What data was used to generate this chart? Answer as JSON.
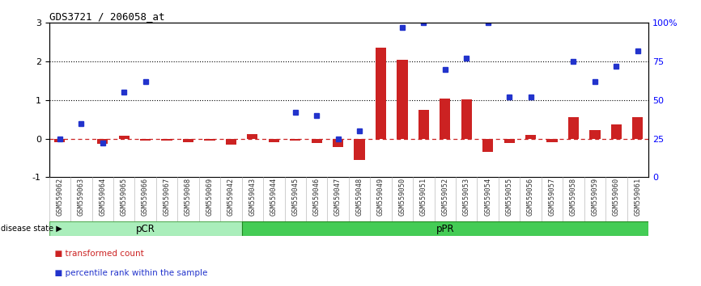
{
  "title": "GDS3721 / 206058_at",
  "samples": [
    "GSM559062",
    "GSM559063",
    "GSM559064",
    "GSM559065",
    "GSM559066",
    "GSM559067",
    "GSM559068",
    "GSM559069",
    "GSM559042",
    "GSM559043",
    "GSM559044",
    "GSM559045",
    "GSM559046",
    "GSM559047",
    "GSM559048",
    "GSM559049",
    "GSM559050",
    "GSM559051",
    "GSM559052",
    "GSM559053",
    "GSM559054",
    "GSM559055",
    "GSM559056",
    "GSM559057",
    "GSM559058",
    "GSM559059",
    "GSM559060",
    "GSM559061"
  ],
  "transformed_count": [
    -0.08,
    0.0,
    -0.13,
    0.08,
    -0.05,
    -0.05,
    -0.08,
    -0.05,
    -0.15,
    0.12,
    -0.08,
    -0.05,
    -0.12,
    -0.22,
    -0.55,
    2.35,
    2.05,
    0.75,
    1.05,
    1.02,
    -0.35,
    -0.12,
    0.1,
    -0.08,
    0.55,
    0.22,
    0.38,
    0.55
  ],
  "percentile_rank": [
    25,
    35,
    22,
    55,
    62,
    null,
    null,
    null,
    null,
    null,
    null,
    42,
    40,
    25,
    30,
    null,
    97,
    100,
    70,
    77,
    100,
    52,
    52,
    null,
    75,
    62,
    72,
    82
  ],
  "pCR_count": 9,
  "pPR_count": 19,
  "ylim": [
    -1,
    3
  ],
  "yticks": [
    -1,
    0,
    1,
    2,
    3
  ],
  "yticklabels": [
    "-1",
    "0",
    "1",
    "2",
    "3"
  ],
  "right_ylim": [
    0,
    100
  ],
  "right_yticks": [
    0,
    25,
    50,
    75,
    100
  ],
  "right_yticklabels": [
    "0",
    "25",
    "50",
    "75",
    "100%"
  ],
  "bar_color": "#cc2222",
  "dot_color": "#2233cc",
  "zero_line_color": "#cc2222",
  "hline_color": "black",
  "pCR_color": "#aaeebb",
  "pPR_color": "#44cc55",
  "legend_red_label": "transformed count",
  "legend_blue_label": "percentile rank within the sample",
  "disease_state_label": "disease state",
  "pCR_label": "pCR",
  "pPR_label": "pPR"
}
